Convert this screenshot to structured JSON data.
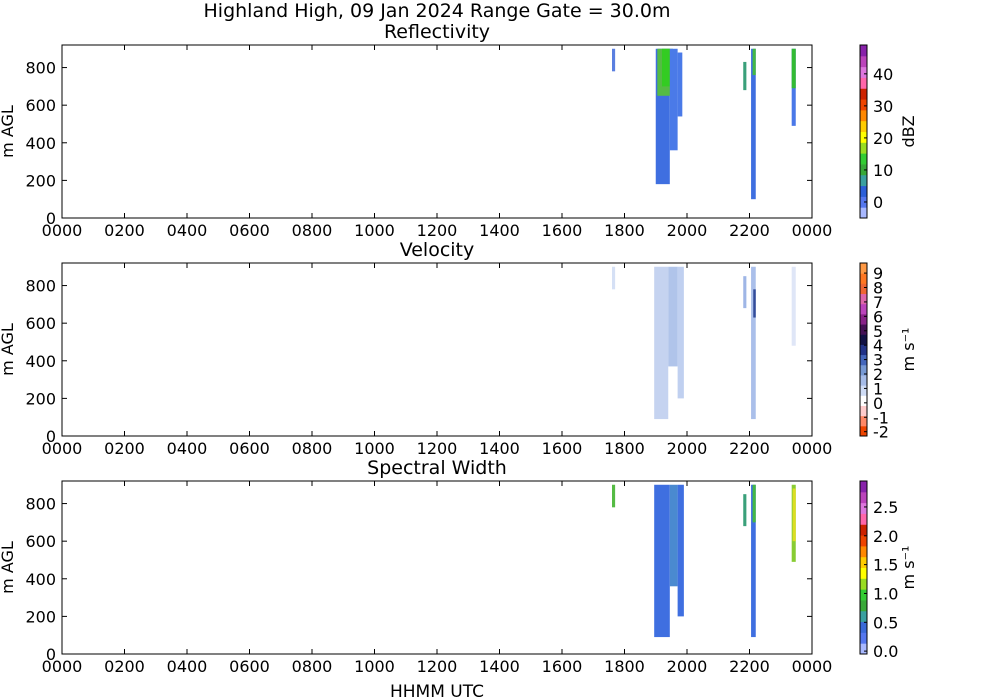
{
  "suptitle": "Highland High, 09 Jan 2024 Range Gate = 30.0m",
  "xlabel": "HHMM UTC",
  "x_ticks": [
    "0000",
    "0200",
    "0400",
    "0600",
    "0800",
    "1000",
    "1200",
    "1400",
    "1600",
    "1800",
    "2000",
    "2200",
    "0000"
  ],
  "y_ticks": [
    "0",
    "200",
    "400",
    "600",
    "800"
  ],
  "chart_data": [
    {
      "type": "heatmap",
      "title": "Reflectivity",
      "ylabel": "m AGL",
      "xlim_hours": [
        0,
        24
      ],
      "ylim": [
        0,
        920
      ],
      "colorbar": {
        "label": "dBZ",
        "range": [
          -5,
          49
        ],
        "ticks": [
          "0",
          "10",
          "20",
          "30",
          "40"
        ],
        "tick_values": [
          0,
          10,
          20,
          30,
          40
        ],
        "colors": [
          "#a8b8ff",
          "#5577ee",
          "#2b5fd8",
          "#3aa0a0",
          "#38a838",
          "#33cc33",
          "#99dd22",
          "#ffff00",
          "#ffcc00",
          "#ff8800",
          "#ee4400",
          "#cc2200",
          "#ff66aa",
          "#dd77dd",
          "#bb44bb",
          "#8822aa"
        ]
      },
      "echoes": [
        {
          "t_start": 17.6,
          "t_end": 17.7,
          "bottom": 780,
          "top": 900,
          "value": 0,
          "color": "#5a7fe0"
        },
        {
          "t_start": 19.0,
          "t_end": 19.45,
          "bottom": 180,
          "top": 900,
          "value": 1,
          "color": "#3f6fe0"
        },
        {
          "t_start": 19.05,
          "t_end": 19.55,
          "bottom": 650,
          "top": 900,
          "value": 11,
          "color": "#55bb44"
        },
        {
          "t_start": 19.2,
          "t_end": 19.45,
          "bottom": 700,
          "top": 900,
          "value": 14,
          "color": "#33cc22"
        },
        {
          "t_start": 19.45,
          "t_end": 19.7,
          "bottom": 360,
          "top": 900,
          "value": 2,
          "color": "#4a7ae8"
        },
        {
          "t_start": 19.7,
          "t_end": 19.85,
          "bottom": 540,
          "top": 880,
          "value": 2,
          "color": "#4a7ae8"
        },
        {
          "t_start": 21.8,
          "t_end": 21.9,
          "bottom": 680,
          "top": 830,
          "value": 9,
          "color": "#3aa07a"
        },
        {
          "t_start": 22.05,
          "t_end": 22.2,
          "bottom": 100,
          "top": 900,
          "value": 1,
          "color": "#3f6fe0"
        },
        {
          "t_start": 22.1,
          "t_end": 22.2,
          "bottom": 760,
          "top": 900,
          "value": 10,
          "color": "#44b844"
        },
        {
          "t_start": 23.35,
          "t_end": 23.48,
          "bottom": 490,
          "top": 900,
          "value": 1,
          "color": "#4a78e8"
        },
        {
          "t_start": 23.35,
          "t_end": 23.48,
          "bottom": 690,
          "top": 900,
          "value": 12,
          "color": "#33bb33"
        }
      ]
    },
    {
      "type": "heatmap",
      "title": "Velocity",
      "ylabel": "m s⁻¹",
      "ylabel_note": "",
      "xlim_hours": [
        0,
        24
      ],
      "ylim": [
        0,
        920
      ],
      "left_ylabel": "m AGL",
      "colorbar": {
        "label": "m s⁻¹",
        "range": [
          -2.3,
          9.7
        ],
        "ticks": [
          "9",
          "8",
          "7",
          "6",
          "5",
          "4",
          "3",
          "2",
          "1",
          "0",
          "-1",
          "-2"
        ],
        "tick_values": [
          9,
          8,
          7,
          6,
          5,
          4,
          3,
          2,
          1,
          0,
          -1,
          -2
        ],
        "colors": [
          "#ee4400",
          "#ff8866",
          "#ffcccc",
          "#ffffff",
          "#cfdcf5",
          "#a6bce8",
          "#7799d4",
          "#4466bb",
          "#223388",
          "#111144",
          "#441155",
          "#882288",
          "#bb44bb",
          "#dd66aa",
          "#ee6633",
          "#ff7722",
          "#ff9944"
        ]
      },
      "echoes": [
        {
          "t_start": 17.6,
          "t_end": 17.7,
          "bottom": 780,
          "top": 900,
          "value": 0.6,
          "color": "#d5e0f5"
        },
        {
          "t_start": 18.95,
          "t_end": 19.4,
          "bottom": 90,
          "top": 900,
          "value": 0.8,
          "color": "#c5d3f0"
        },
        {
          "t_start": 19.4,
          "t_end": 19.7,
          "bottom": 370,
          "top": 900,
          "value": 1.0,
          "color": "#b0c4ea"
        },
        {
          "t_start": 19.7,
          "t_end": 19.9,
          "bottom": 200,
          "top": 900,
          "value": 0.9,
          "color": "#c0d0f0"
        },
        {
          "t_start": 21.8,
          "t_end": 21.9,
          "bottom": 680,
          "top": 850,
          "value": 1.4,
          "color": "#9fb6e6"
        },
        {
          "t_start": 22.05,
          "t_end": 22.2,
          "bottom": 90,
          "top": 900,
          "value": 1.2,
          "color": "#aabfea"
        },
        {
          "t_start": 22.12,
          "t_end": 22.2,
          "bottom": 630,
          "top": 780,
          "value": 3.2,
          "color": "#334c99"
        },
        {
          "t_start": 23.35,
          "t_end": 23.48,
          "bottom": 480,
          "top": 900,
          "value": 0.5,
          "color": "#dfe6f7"
        }
      ]
    },
    {
      "type": "heatmap",
      "title": "Spectral Width",
      "xlim_hours": [
        0,
        24
      ],
      "ylim": [
        0,
        920
      ],
      "left_ylabel": "m AGL",
      "colorbar": {
        "label": "m s⁻¹",
        "range": [
          -0.05,
          2.95
        ],
        "ticks": [
          "2.5",
          "2.0",
          "1.5",
          "1.0",
          "0.5",
          "0.0"
        ],
        "tick_values": [
          2.5,
          2.0,
          1.5,
          1.0,
          0.5,
          0.0
        ],
        "colors": [
          "#a8b8ff",
          "#5577ee",
          "#3a6ad8",
          "#3aa0a0",
          "#38a838",
          "#33cc33",
          "#99dd22",
          "#ffff00",
          "#ffcc00",
          "#ff8800",
          "#ee4400",
          "#cc2200",
          "#ff66aa",
          "#dd77dd",
          "#bb44bb",
          "#8822aa"
        ]
      },
      "echoes": [
        {
          "t_start": 17.6,
          "t_end": 17.7,
          "bottom": 780,
          "top": 900,
          "value": 0.9,
          "color": "#55bb44"
        },
        {
          "t_start": 18.95,
          "t_end": 19.45,
          "bottom": 90,
          "top": 900,
          "value": 0.3,
          "color": "#3f6fe0"
        },
        {
          "t_start": 19.45,
          "t_end": 19.7,
          "bottom": 360,
          "top": 900,
          "value": 0.45,
          "color": "#4a8ad0"
        },
        {
          "t_start": 19.7,
          "t_end": 19.9,
          "bottom": 200,
          "top": 900,
          "value": 0.3,
          "color": "#3f6fe0"
        },
        {
          "t_start": 21.8,
          "t_end": 21.9,
          "bottom": 680,
          "top": 850,
          "value": 0.6,
          "color": "#3aa07a"
        },
        {
          "t_start": 22.05,
          "t_end": 22.2,
          "bottom": 90,
          "top": 900,
          "value": 0.3,
          "color": "#3f6fe0"
        },
        {
          "t_start": 22.1,
          "t_end": 22.2,
          "bottom": 700,
          "top": 900,
          "value": 0.95,
          "color": "#44b844"
        },
        {
          "t_start": 23.35,
          "t_end": 23.48,
          "bottom": 490,
          "top": 900,
          "value": 1.2,
          "color": "#88cc33"
        },
        {
          "t_start": 23.38,
          "t_end": 23.48,
          "bottom": 600,
          "top": 880,
          "value": 1.5,
          "color": "#dddd22"
        }
      ]
    }
  ]
}
